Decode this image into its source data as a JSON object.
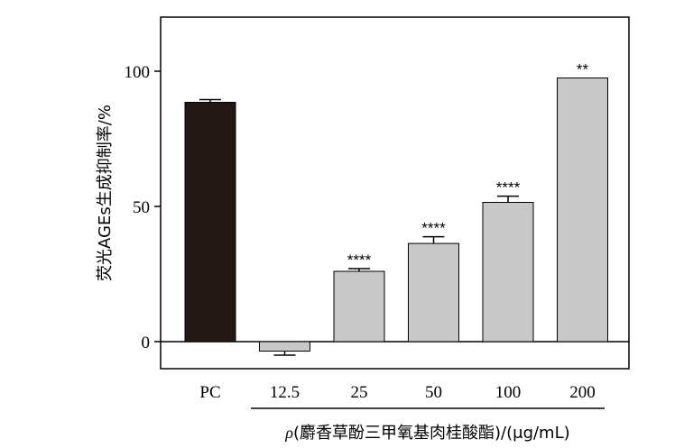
{
  "chart_data": {
    "type": "bar",
    "categories": [
      "PC",
      "12.5",
      "25",
      "50",
      "100",
      "200"
    ],
    "values": [
      88.5,
      -3.5,
      26,
      36.3,
      51.5,
      97.5
    ],
    "errors": [
      1,
      1.5,
      1,
      2.5,
      2.3,
      0
    ],
    "significance": [
      "",
      "",
      "****",
      "****",
      "****",
      "**"
    ],
    "bar_colors": [
      "#231815",
      "#c8c8c8",
      "#c8c8c8",
      "#c8c8c8",
      "#c8c8c8",
      "#c8c8c8"
    ],
    "ylabel": "荧光AGEs生成抑制率/%",
    "xlabel_rho": "ρ",
    "xlabel_rest": "(麝香草酚三甲氧基肉桂酸酯)/(μg/mL)",
    "ylim": [
      -10,
      120
    ],
    "yticks": [
      0,
      50,
      100
    ],
    "grid": false,
    "legend": "none"
  }
}
